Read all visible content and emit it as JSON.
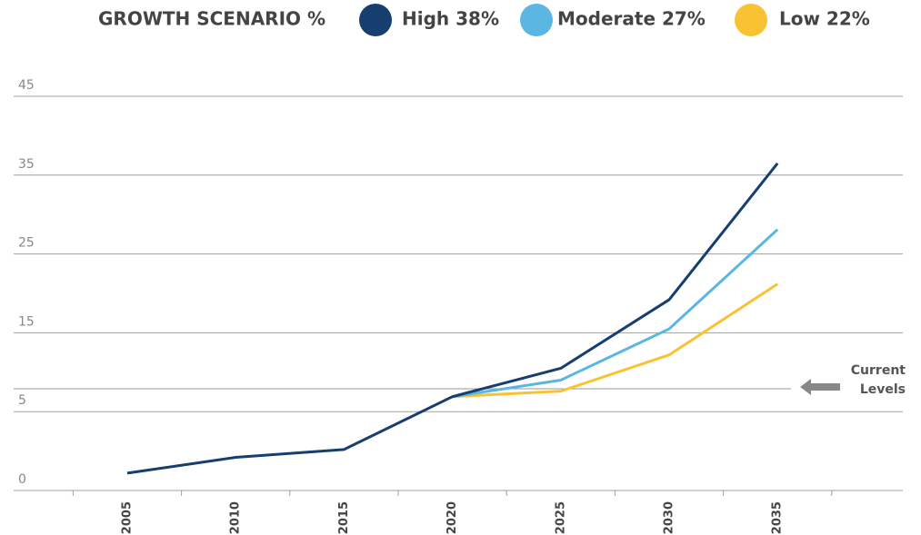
{
  "chart_data": {
    "type": "line",
    "legend_title": "GROWTH SCENARIO %",
    "categories": [
      "2005",
      "2010",
      "2015",
      "2020",
      "2025",
      "2030",
      "2035"
    ],
    "series": [
      {
        "name": "High 38%",
        "color": "#163f70",
        "values": [
          1.1,
          2.1,
          2.6,
          6.9,
          10.5,
          19.2,
          36.5
        ]
      },
      {
        "name": "Moderate 27%",
        "color": "#5bb7e2",
        "values": [
          null,
          null,
          null,
          6.9,
          9.0,
          15.5,
          28.1
        ]
      },
      {
        "name": "Low 22%",
        "color": "#f8c232",
        "values": [
          null,
          null,
          null,
          6.9,
          7.6,
          12.2,
          21.2
        ]
      }
    ],
    "ylim": [
      0,
      45
    ],
    "yticks": [
      0,
      5,
      15,
      25,
      35,
      45
    ],
    "grid": true,
    "reference_line": {
      "value": 7.9,
      "label": "Current Levels"
    }
  }
}
